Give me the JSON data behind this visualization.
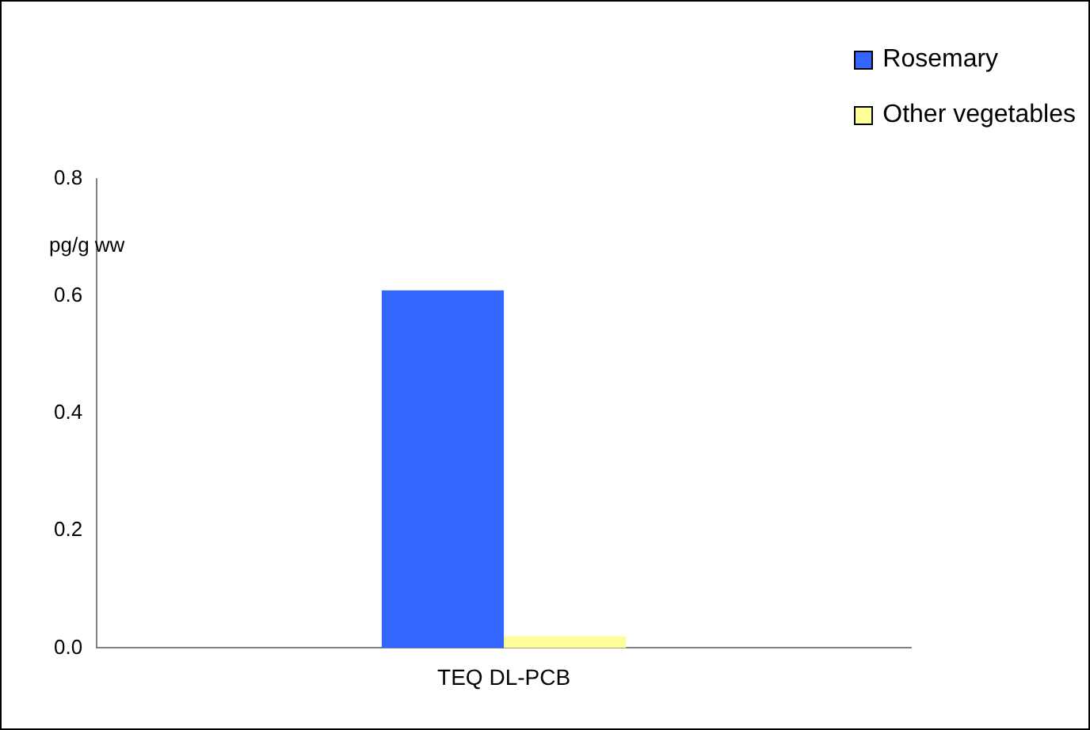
{
  "chart_data": {
    "type": "bar",
    "ylabel": "pg/g ww",
    "categories": [
      "TEQ DL-PCB"
    ],
    "series": [
      {
        "name": "Rosemary",
        "color": "#3366ff",
        "values": [
          0.61
        ]
      },
      {
        "name": "Other vegetables",
        "color": "#ffff99",
        "values": [
          0.02
        ]
      }
    ],
    "ylim": [
      0,
      0.8
    ],
    "yticks": [
      {
        "value": 0,
        "label": "0.0"
      },
      {
        "value": 0.2,
        "label": "0.2"
      },
      {
        "value": 0.4,
        "label": "0.4"
      },
      {
        "value": 0.6,
        "label": "0.6"
      },
      {
        "value": 0.8,
        "label": "0.8"
      }
    ],
    "grid": false,
    "legend": "top right"
  }
}
